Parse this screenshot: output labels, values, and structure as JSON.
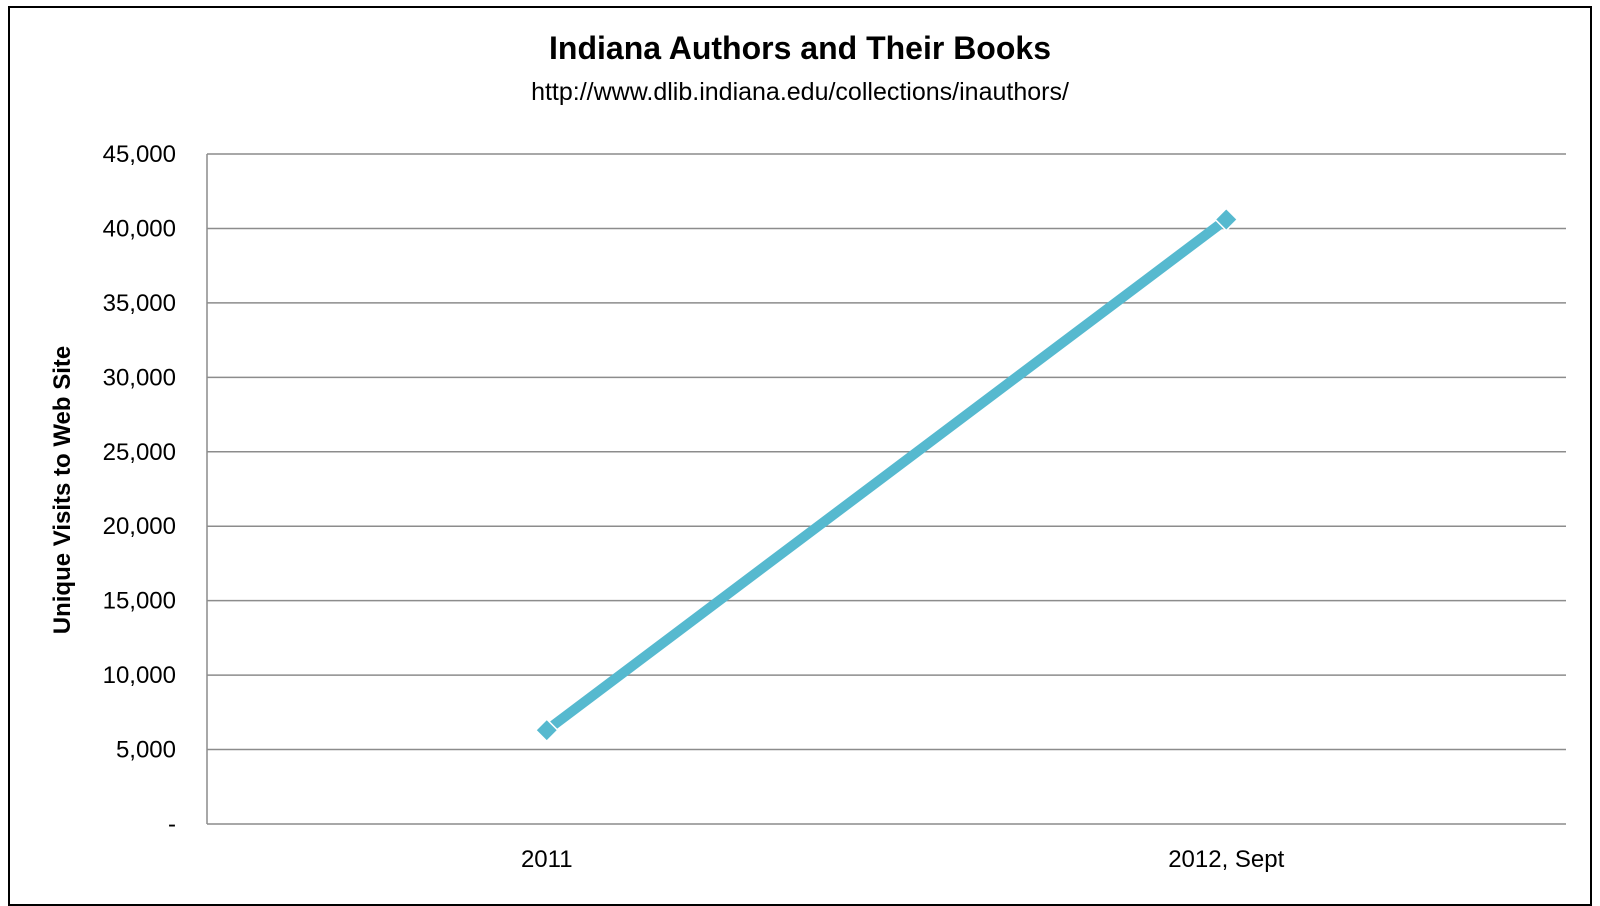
{
  "chart_data": {
    "type": "line",
    "title": "Indiana Authors and Their Books",
    "subtitle": "http://www.dlib.indiana.edu/collections/inauthors/",
    "xlabel": "",
    "ylabel": "Unique Visits to Web Site",
    "categories": [
      "2011",
      "2012, Sept"
    ],
    "series": [
      {
        "values": [
          6300,
          40600
        ]
      }
    ],
    "ylim": [
      0,
      45000
    ],
    "yticks": [
      0,
      5000,
      10000,
      15000,
      20000,
      25000,
      30000,
      35000,
      40000,
      45000
    ],
    "ytick_labels": [
      "-",
      "5,000",
      "10,000",
      "15,000",
      "20,000",
      "25,000",
      "30,000",
      "35,000",
      "40,000",
      "45,000"
    ],
    "grid": true,
    "legend": "none",
    "colors": {
      "line": "#56B9CF",
      "grid": "#8c8c8c",
      "axis": "#8c8c8c"
    }
  }
}
